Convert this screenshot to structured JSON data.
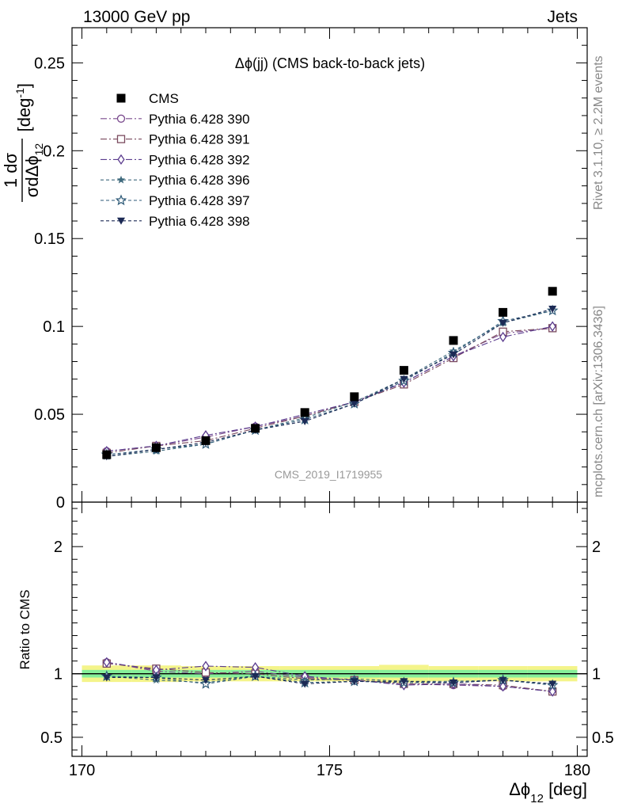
{
  "header": {
    "left": "13000 GeV pp",
    "right": "Jets"
  },
  "side_labels": {
    "rivet": "Rivet 3.1.10, ≥ 2.2M events",
    "mcplots": "mcplots.cern.ch [arXiv:1306.3436]"
  },
  "colors": {
    "cms": "#000000",
    "p390": "#7b4b8e",
    "p391": "#7a4a5e",
    "p392": "#5b3c8e",
    "p396": "#3f6a7d",
    "p397": "#2e5a78",
    "p398": "#1c2a55",
    "band_inner": "#86ef9a",
    "band_outer": "#f4f48a"
  },
  "chart_data": [
    {
      "type": "scatter",
      "title": "Δϕ(jj) (CMS back-to-back jets)",
      "watermark": "CMS_2019_I1719955",
      "ylabel_num": "1",
      "ylabel_dsigma": "dσ",
      "ylabel_den": "σdΔϕ",
      "ylabel_den_sub": "12",
      "ylabel_unit": "[deg",
      "ylabel_unit_sup": "-1",
      "ylabel_unit_close": "]",
      "xlim": [
        169.8,
        180.2
      ],
      "ylim": [
        0,
        0.27
      ],
      "yticks": [
        0,
        0.05,
        0.1,
        0.15,
        0.2,
        0.25
      ],
      "ytick_labels": [
        "0",
        "0.05",
        "0.1",
        "0.15",
        "0.2",
        "0.25"
      ],
      "x": [
        170.5,
        171.5,
        172.5,
        173.5,
        174.5,
        175.5,
        176.5,
        177.5,
        178.5,
        179.5
      ],
      "series": [
        {
          "name": "CMS",
          "values": [
            0.027,
            0.031,
            0.035,
            0.042,
            0.051,
            0.06,
            0.075,
            0.092,
            0.108,
            0.12
          ]
        },
        {
          "name": "Pythia 6.428 390",
          "values": [
            0.029,
            0.032,
            0.037,
            0.043,
            0.049,
            0.057,
            0.068,
            0.083,
            0.096,
            0.099
          ]
        },
        {
          "name": "Pythia 6.428 391",
          "values": [
            0.028,
            0.032,
            0.035,
            0.042,
            0.049,
            0.057,
            0.067,
            0.082,
            0.097,
            0.099
          ]
        },
        {
          "name": "Pythia 6.428 392",
          "values": [
            0.029,
            0.032,
            0.038,
            0.043,
            0.05,
            0.057,
            0.068,
            0.083,
            0.094,
            0.1
          ]
        },
        {
          "name": "Pythia 6.428 396",
          "values": [
            0.026,
            0.029,
            0.033,
            0.041,
            0.048,
            0.057,
            0.07,
            0.086,
            0.102,
            0.109
          ]
        },
        {
          "name": "Pythia 6.428 397",
          "values": [
            0.027,
            0.03,
            0.033,
            0.041,
            0.047,
            0.056,
            0.069,
            0.085,
            0.103,
            0.109
          ]
        },
        {
          "name": "Pythia 6.428 398",
          "values": [
            0.026,
            0.03,
            0.034,
            0.041,
            0.046,
            0.056,
            0.07,
            0.084,
            0.102,
            0.11
          ]
        }
      ]
    },
    {
      "type": "scatter",
      "ylabel": "Ratio to CMS",
      "xlabel_main": "Δϕ",
      "xlabel_sub": "12",
      "xlabel_unit": "[deg]",
      "xlim": [
        169.8,
        180.2
      ],
      "ylim": [
        0.35,
        2.35
      ],
      "xticks": [
        170,
        175,
        180
      ],
      "xtick_labels": [
        "170",
        "175",
        "180"
      ],
      "yticks": [
        0.5,
        1,
        2
      ],
      "ytick_labels": [
        "0.5",
        "1",
        "2"
      ],
      "band_inner": [
        0.03,
        0.03,
        0.03,
        0.03,
        0.03,
        0.03,
        0.03,
        0.03,
        0.03,
        0.03
      ],
      "band_outer": [
        0.065,
        0.065,
        0.06,
        0.06,
        0.06,
        0.06,
        0.07,
        0.06,
        0.06,
        0.06
      ],
      "x": [
        170.5,
        171.5,
        172.5,
        173.5,
        174.5,
        175.5,
        176.5,
        177.5,
        178.5,
        179.5
      ],
      "series": [
        {
          "name": "Pythia 6.428 390",
          "values": [
            1.09,
            1.02,
            1.0,
            1.02,
            0.97,
            0.95,
            0.92,
            0.91,
            0.9,
            0.86
          ]
        },
        {
          "name": "Pythia 6.428 391",
          "values": [
            1.08,
            1.04,
            1.01,
            1.0,
            0.96,
            0.95,
            0.92,
            0.92,
            0.91,
            0.86
          ]
        },
        {
          "name": "Pythia 6.428 392",
          "values": [
            1.09,
            1.03,
            1.06,
            1.05,
            0.98,
            0.95,
            0.91,
            0.92,
            0.9,
            0.86
          ]
        },
        {
          "name": "Pythia 6.428 396",
          "values": [
            0.98,
            0.95,
            0.93,
            0.98,
            0.95,
            0.96,
            0.94,
            0.94,
            0.95,
            0.92
          ]
        },
        {
          "name": "Pythia 6.428 397",
          "values": [
            0.98,
            0.97,
            0.92,
            0.98,
            0.93,
            0.94,
            0.93,
            0.93,
            0.95,
            0.91
          ]
        },
        {
          "name": "Pythia 6.428 398",
          "values": [
            0.97,
            0.97,
            0.95,
            0.98,
            0.92,
            0.94,
            0.94,
            0.93,
            0.95,
            0.92
          ]
        }
      ]
    }
  ]
}
